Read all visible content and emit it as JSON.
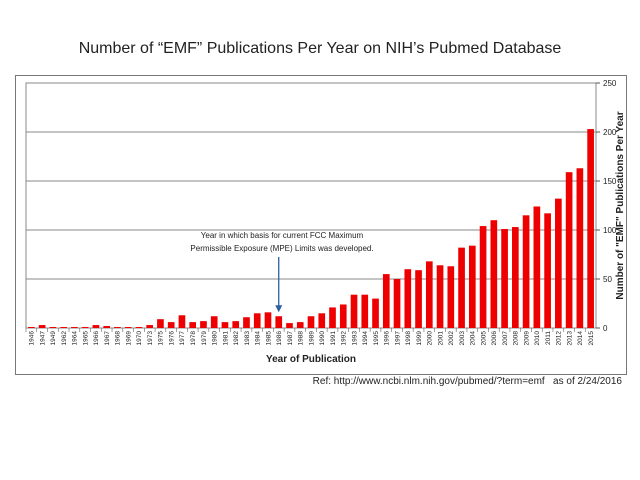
{
  "chart_data": {
    "type": "bar",
    "title": "Number of “EMF” Publications Per Year on NIH’s Pubmed Database",
    "xlabel": "Year of Publication",
    "ylabel": "Number of \"EMF\" Publications Per Year",
    "ylim": [
      0,
      250
    ],
    "yticks": [
      0,
      50,
      100,
      150,
      200,
      250
    ],
    "y_axis_side": "right",
    "grid": true,
    "bar_color": "#ee0000",
    "categories": [
      "1946",
      "1947",
      "1949",
      "1962",
      "1964",
      "1965",
      "1966",
      "1967",
      "1968",
      "1969",
      "1970",
      "1973",
      "1975",
      "1976",
      "1977",
      "1978",
      "1979",
      "1980",
      "1981",
      "1982",
      "1983",
      "1984",
      "1985",
      "1986",
      "1987",
      "1988",
      "1989",
      "1990",
      "1991",
      "1992",
      "1993",
      "1994",
      "1995",
      "1996",
      "1997",
      "1998",
      "1999",
      "2000",
      "2001",
      "2002",
      "2003",
      "2004",
      "2005",
      "2006",
      "2007",
      "2008",
      "2009",
      "2010",
      "2011",
      "2012",
      "2013",
      "2014",
      "2015"
    ],
    "values": [
      1,
      3,
      1,
      1,
      1,
      1,
      3,
      2,
      1,
      1,
      1,
      3,
      9,
      6,
      13,
      6,
      7,
      12,
      6,
      7,
      11,
      15,
      16,
      12,
      5,
      6,
      12,
      15,
      21,
      24,
      34,
      34,
      30,
      55,
      50,
      60,
      59,
      68,
      64,
      63,
      82,
      84,
      104,
      110,
      101,
      103,
      115,
      124,
      117,
      132,
      159,
      163,
      203
    ],
    "annotation": {
      "text": "Year in which basis for current FCC Maximum Permissible Exposure (MPE) Limits was developed.",
      "target_category": "1986"
    }
  },
  "reference": {
    "text": "Ref: http://www.ncbi.nlm.nih.gov/pubmed/?term=emf   as of 2/24/2016"
  }
}
